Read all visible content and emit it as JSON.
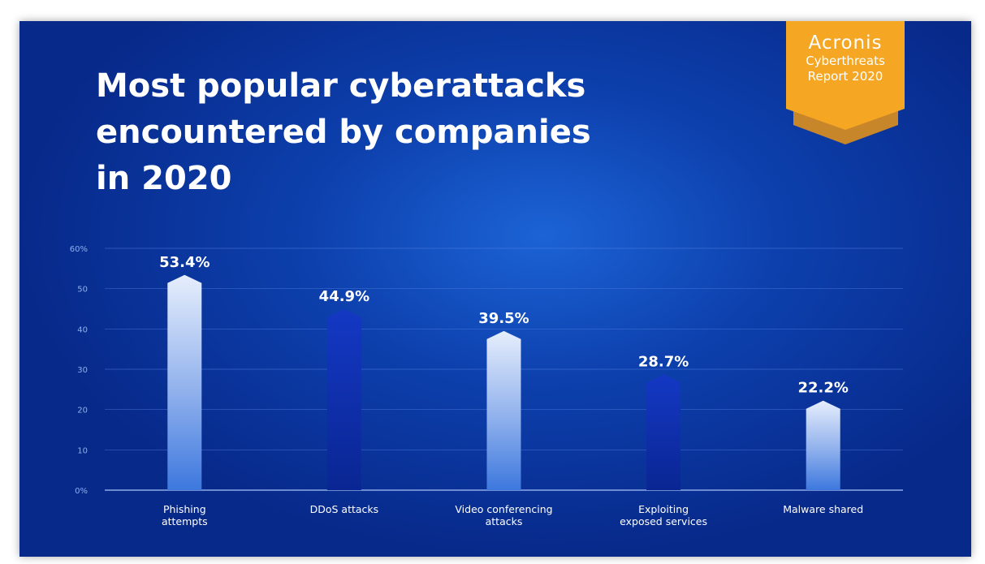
{
  "title_lines": [
    "Most popular cyberattacks",
    "encountered by companies",
    "in 2020"
  ],
  "badge": {
    "brand": "Acronis",
    "line1": "Cyberthreats",
    "line2": "Report 2020"
  },
  "colors": {
    "badge": "#f5a623",
    "badge_dark": "#c8862a",
    "gridline": "#5a86e6",
    "value_label": "#ffffff"
  },
  "chart_data": {
    "type": "bar",
    "title": "Most popular cyberattacks encountered by companies in 2020",
    "categories": [
      [
        "Phishing",
        "attempts"
      ],
      [
        "DDoS attacks"
      ],
      [
        "Video conferencing",
        "attacks"
      ],
      [
        "Exploiting",
        "exposed services"
      ],
      [
        "Malware shared"
      ]
    ],
    "values": [
      53.4,
      44.9,
      39.5,
      28.7,
      22.2
    ],
    "value_labels": [
      "53.4%",
      "44.9%",
      "39.5%",
      "28.7%",
      "22.2%"
    ],
    "bar_styles": [
      "light",
      "dark",
      "light",
      "dark",
      "light"
    ],
    "ylim": [
      0,
      60
    ],
    "yticks": [
      0,
      10,
      20,
      30,
      40,
      50,
      60
    ],
    "ytick_labels": [
      "0%",
      "10",
      "20",
      "30",
      "40",
      "50",
      "60%"
    ],
    "grid": true
  }
}
